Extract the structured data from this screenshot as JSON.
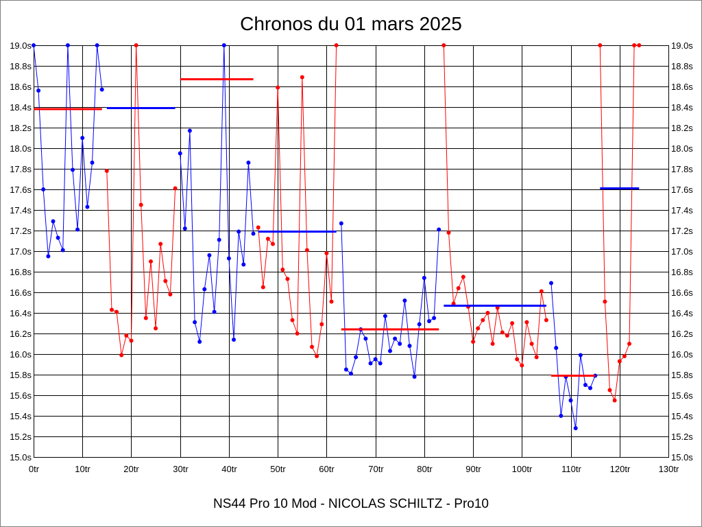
{
  "chart_data": {
    "type": "line",
    "title": "Chronos du 01 mars 2025",
    "caption": "NS44 Pro 10 Mod - NICOLAS SCHILTZ - Pro10",
    "xlim": [
      0,
      130
    ],
    "ylim": [
      15.0,
      19.0
    ],
    "grid": true,
    "legend": "none",
    "y_labels": "both-sides",
    "x_ticks": [
      {
        "value": 0,
        "label": "0tr"
      },
      {
        "value": 10,
        "label": "10tr"
      },
      {
        "value": 20,
        "label": "20tr"
      },
      {
        "value": 30,
        "label": "30tr"
      },
      {
        "value": 40,
        "label": "40tr"
      },
      {
        "value": 50,
        "label": "50tr"
      },
      {
        "value": 60,
        "label": "60tr"
      },
      {
        "value": 70,
        "label": "70tr"
      },
      {
        "value": 80,
        "label": "80tr"
      },
      {
        "value": 90,
        "label": "90tr"
      },
      {
        "value": 100,
        "label": "100tr"
      },
      {
        "value": 110,
        "label": "110tr"
      },
      {
        "value": 120,
        "label": "120tr"
      },
      {
        "value": 130,
        "label": "130tr"
      }
    ],
    "y_ticks": [
      {
        "value": 15.0,
        "label": "15.0s"
      },
      {
        "value": 15.2,
        "label": "15.2s"
      },
      {
        "value": 15.4,
        "label": "15.4s"
      },
      {
        "value": 15.6,
        "label": "15.6s"
      },
      {
        "value": 15.8,
        "label": "15.8s"
      },
      {
        "value": 16.0,
        "label": "16.0s"
      },
      {
        "value": 16.2,
        "label": "16.2s"
      },
      {
        "value": 16.4,
        "label": "16.4s"
      },
      {
        "value": 16.6,
        "label": "16.6s"
      },
      {
        "value": 16.8,
        "label": "16.8s"
      },
      {
        "value": 17.0,
        "label": "17.0s"
      },
      {
        "value": 17.2,
        "label": "17.2s"
      },
      {
        "value": 17.4,
        "label": "17.4s"
      },
      {
        "value": 17.6,
        "label": "17.6s"
      },
      {
        "value": 17.8,
        "label": "17.8s"
      },
      {
        "value": 18.0,
        "label": "18.0s"
      },
      {
        "value": 18.2,
        "label": "18.2s"
      },
      {
        "value": 18.4,
        "label": "18.4s"
      },
      {
        "value": 18.6,
        "label": "18.6s"
      },
      {
        "value": 18.8,
        "label": "18.8s"
      },
      {
        "value": 19.0,
        "label": "19.0s"
      }
    ],
    "series": [
      {
        "color": "#0000ff",
        "x": [
          0,
          1,
          2,
          3,
          4,
          5,
          6,
          7,
          8,
          9,
          10,
          11,
          12,
          13,
          14
        ],
        "y": [
          19.0,
          18.56,
          17.6,
          16.95,
          17.29,
          17.13,
          17.01,
          19.0,
          17.79,
          17.21,
          18.1,
          17.43,
          17.86,
          19.0,
          18.57
        ]
      },
      {
        "color": "#ff0000",
        "x": [
          15,
          16,
          17,
          18,
          19,
          20,
          21,
          22,
          23,
          24,
          25,
          26,
          27,
          28,
          29
        ],
        "y": [
          17.78,
          16.43,
          16.41,
          15.99,
          16.18,
          16.13,
          19.0,
          17.45,
          16.35,
          16.9,
          16.25,
          17.07,
          16.71,
          16.58,
          17.61
        ]
      },
      {
        "color": "#0000ff",
        "x": [
          30,
          31,
          32,
          33,
          34,
          35,
          36,
          37,
          38,
          39,
          40,
          41,
          42,
          43,
          44,
          45
        ],
        "y": [
          17.95,
          17.22,
          18.17,
          16.31,
          16.12,
          16.63,
          16.96,
          16.41,
          17.11,
          19.0,
          16.93,
          16.14,
          17.19,
          16.87,
          17.86,
          17.17
        ]
      },
      {
        "color": "#ff0000",
        "x": [
          46,
          47,
          48,
          49,
          50,
          51,
          52,
          53,
          54,
          55,
          56,
          57,
          58,
          59,
          60,
          61,
          62
        ],
        "y": [
          17.23,
          16.65,
          17.12,
          17.07,
          18.59,
          16.82,
          16.73,
          16.33,
          16.2,
          18.69,
          17.01,
          16.07,
          15.98,
          16.29,
          16.98,
          16.51,
          19.0
        ]
      },
      {
        "color": "#0000ff",
        "x": [
          63,
          64,
          65,
          66,
          67,
          68,
          69,
          70,
          71,
          72,
          73,
          74,
          75,
          76,
          77,
          78,
          79,
          80,
          81,
          82,
          83
        ],
        "y": [
          17.27,
          15.85,
          15.81,
          15.97,
          16.24,
          16.15,
          15.91,
          15.95,
          15.91,
          16.37,
          16.03,
          16.15,
          16.1,
          16.52,
          16.08,
          15.78,
          16.29,
          16.74,
          16.32,
          16.35,
          17.21
        ]
      },
      {
        "color": "#ff0000",
        "x": [
          84,
          85,
          86,
          87,
          88,
          89,
          90,
          91,
          92,
          93,
          94,
          95,
          96,
          97,
          98,
          99,
          100,
          101,
          102,
          103,
          104,
          105
        ],
        "y": [
          19.0,
          17.18,
          16.49,
          16.64,
          16.75,
          16.46,
          16.12,
          16.25,
          16.33,
          16.4,
          16.1,
          16.45,
          16.21,
          16.18,
          16.3,
          15.95,
          15.89,
          16.31,
          16.1,
          15.97,
          16.61,
          16.33
        ]
      },
      {
        "color": "#0000ff",
        "x": [
          106,
          107,
          108,
          109,
          110,
          111,
          112,
          113,
          114,
          115
        ],
        "y": [
          16.69,
          16.06,
          15.4,
          15.78,
          15.55,
          15.28,
          15.99,
          15.7,
          15.67,
          15.79
        ]
      },
      {
        "color": "#ff0000",
        "x": [
          116,
          117,
          118,
          119,
          120,
          121,
          122,
          123,
          124
        ],
        "y": [
          19.0,
          16.51,
          15.65,
          15.55,
          15.93,
          15.98,
          16.1,
          19.0,
          19.0
        ]
      }
    ],
    "stint_averages": [
      {
        "color": "#ff0000",
        "x": [
          0,
          14
        ],
        "value": 18.38
      },
      {
        "color": "#0000ff",
        "x": [
          15,
          29
        ],
        "value": 18.39
      },
      {
        "color": "#ff0000",
        "x": [
          30,
          45
        ],
        "value": 18.67
      },
      {
        "color": "#0000ff",
        "x": [
          46,
          62
        ],
        "value": 17.19
      },
      {
        "color": "#ff0000",
        "x": [
          63,
          83
        ],
        "value": 16.24
      },
      {
        "color": "#0000ff",
        "x": [
          84,
          105
        ],
        "value": 16.47
      },
      {
        "color": "#ff0000",
        "x": [
          106,
          115
        ],
        "value": 15.79
      },
      {
        "color": "#0000ff",
        "x": [
          116,
          124
        ],
        "value": 17.61
      }
    ]
  }
}
